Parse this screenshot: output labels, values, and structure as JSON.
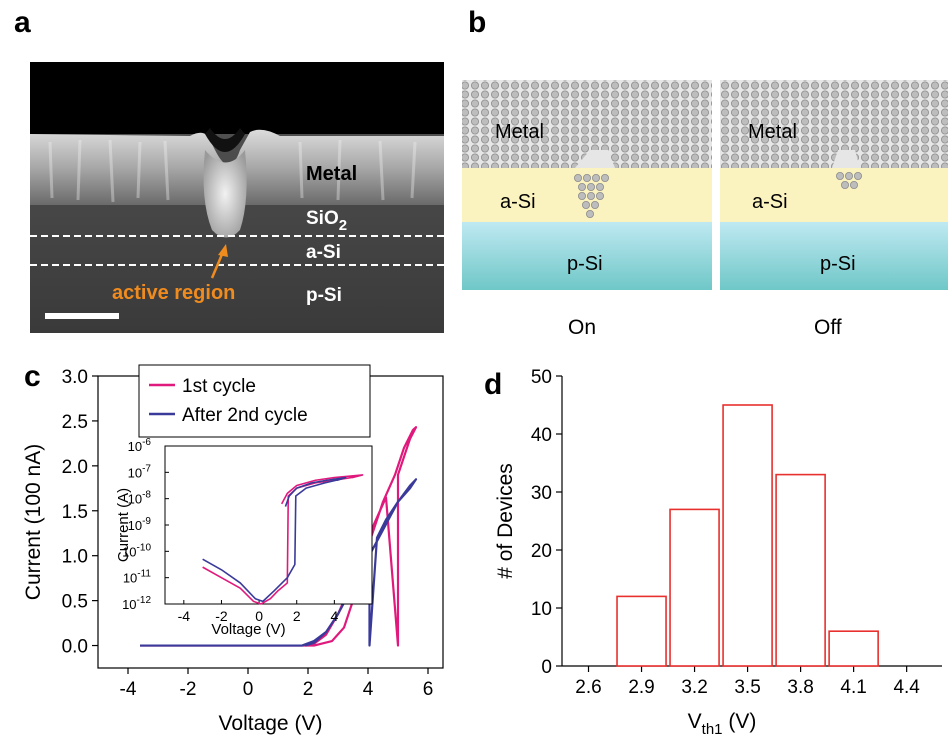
{
  "panels": {
    "a": {
      "letter": "a",
      "labels": {
        "metal": "Metal",
        "sio2_main": "SiO",
        "sio2_sub": "2",
        "a_si": "a-Si",
        "p_si": "p-Si",
        "active_region": "active region"
      },
      "colors": {
        "annotation": "#f08c1e",
        "text": "#ffffff"
      }
    },
    "b": {
      "letter": "b",
      "labels": {
        "metal_on": "Metal",
        "metal_off": "Metal",
        "asi_on": "a-Si",
        "asi_off": "a-Si",
        "psi_on": "p-Si",
        "psi_off": "p-Si",
        "state_on": "On",
        "state_off": "Off"
      },
      "colors": {
        "metal_bg": "#d9d9d9",
        "asi": "#fbf3bf",
        "psi_top": "#bfe9f2",
        "psi_bottom": "#6fc7c7"
      }
    },
    "c": {
      "letter": "c"
    },
    "d": {
      "letter": "d"
    }
  },
  "chart_data": [
    {
      "id": "c-main",
      "type": "line",
      "xlabel": "Voltage (V)",
      "ylabel": "Current (100 nA)",
      "xlim": [
        -5,
        6.5
      ],
      "ylim": [
        -0.25,
        3.0
      ],
      "xticks": [
        "-4",
        "-2",
        "0",
        "2",
        "4",
        "6"
      ],
      "xtick_values": [
        -4,
        -2,
        0,
        2,
        4,
        6
      ],
      "yticks": [
        "0.0",
        "0.5",
        "1.0",
        "1.5",
        "2.0",
        "2.5",
        "3.0"
      ],
      "ytick_values": [
        0,
        0.5,
        1.0,
        1.5,
        2.0,
        2.5,
        3.0
      ],
      "legend_placement": "top-left",
      "series": [
        {
          "name": "1st cycle",
          "color": "#e0197d",
          "x": [
            -3.6,
            2.2,
            2.8,
            3.2,
            3.6,
            4.0,
            4.5,
            4.9,
            5.2,
            5.5,
            5.6,
            5.4,
            5.0,
            5.0,
            4.6,
            4.2,
            3.8,
            3.4,
            3.0,
            2.6,
            2.2,
            1.9
          ],
          "y": [
            0.0,
            0.0,
            0.05,
            0.2,
            0.6,
            1.1,
            1.6,
            1.9,
            2.2,
            2.4,
            2.43,
            2.3,
            1.9,
            0.0,
            1.65,
            1.35,
            1.0,
            0.65,
            0.35,
            0.12,
            0.02,
            0.0
          ]
        },
        {
          "name": "After 2nd cycle",
          "color": "#3a3a9a",
          "x": [
            -3.6,
            1.8,
            2.2,
            2.6,
            3.0,
            3.4,
            3.8,
            4.05,
            4.05,
            4.3,
            4.6,
            5.0,
            5.4,
            5.6,
            5.4,
            5.0,
            4.6,
            4.2,
            3.8,
            3.4,
            3.0,
            2.6,
            2.2,
            1.9
          ],
          "y": [
            0.0,
            0.0,
            0.05,
            0.15,
            0.35,
            0.6,
            0.9,
            1.05,
            0.0,
            1.2,
            1.4,
            1.6,
            1.78,
            1.85,
            1.75,
            1.6,
            1.35,
            1.1,
            0.85,
            0.6,
            0.35,
            0.15,
            0.03,
            0.0
          ]
        }
      ]
    },
    {
      "id": "c-inset",
      "type": "line",
      "xlabel": "Voltage (V)",
      "ylabel": "Current (A)",
      "xlim": [
        -5,
        6
      ],
      "ylim_exp": [
        -12,
        -6
      ],
      "log_y": true,
      "xticks": [
        "-4",
        "-2",
        "0",
        "2",
        "4"
      ],
      "xtick_values": [
        -4,
        -2,
        0,
        2,
        4
      ],
      "ytick_base": "10",
      "ytick_exps": [
        "-12",
        "-11",
        "-10",
        "-9",
        "-8",
        "-7",
        "-6"
      ],
      "ytick_values": [
        -12,
        -11,
        -10,
        -9,
        -8,
        -7,
        -6
      ],
      "series": [
        {
          "name": "1st cycle",
          "color": "#e0197d",
          "x": [
            -3.0,
            -2.0,
            -1.0,
            -0.3,
            0.1,
            0.6,
            1.0,
            1.5,
            1.55,
            2.0,
            3.0,
            4.0,
            4.9,
            4.95,
            5.5,
            4.0,
            3.0,
            2.0,
            1.5,
            1.2
          ],
          "y": [
            -10.6,
            -11.0,
            -11.4,
            -11.9,
            -12.0,
            -11.8,
            -11.5,
            -11.2,
            -7.9,
            -7.6,
            -7.4,
            -7.3,
            -7.2,
            -7.2,
            -7.1,
            -7.2,
            -7.3,
            -7.5,
            -7.8,
            -8.2
          ]
        },
        {
          "name": "After 2nd cycle",
          "color": "#3a3a9a",
          "x": [
            -3.0,
            -2.0,
            -1.0,
            -0.2,
            0.2,
            0.8,
            1.5,
            1.9,
            1.95,
            2.5,
            3.5,
            4.1,
            4.15,
            4.6,
            3.6,
            2.8,
            2.0,
            1.6,
            1.4
          ],
          "y": [
            -10.3,
            -10.7,
            -11.2,
            -11.8,
            -11.9,
            -11.5,
            -11.0,
            -10.5,
            -7.9,
            -7.6,
            -7.4,
            -7.3,
            -7.3,
            -7.2,
            -7.3,
            -7.4,
            -7.6,
            -7.9,
            -8.3
          ]
        }
      ]
    },
    {
      "id": "d-hist",
      "type": "bar",
      "xlabel_main": "V",
      "xlabel_sub": "th1",
      "xlabel_tail": " (V)",
      "ylabel": "# of Devices",
      "xlim": [
        2.45,
        4.6
      ],
      "ylim": [
        0,
        50
      ],
      "xticks": [
        "2.6",
        "2.9",
        "3.2",
        "3.5",
        "3.8",
        "4.1",
        "4.4"
      ],
      "xtick_values": [
        2.6,
        2.9,
        3.2,
        3.5,
        3.8,
        4.1,
        4.4
      ],
      "yticks": [
        "0",
        "10",
        "20",
        "30",
        "40",
        "50"
      ],
      "ytick_values": [
        0,
        10,
        20,
        30,
        40,
        50
      ],
      "bar_color": "#e8302e",
      "bin_width": 0.3,
      "bins": [
        2.9,
        3.2,
        3.5,
        3.8,
        4.1
      ],
      "values": [
        12,
        27,
        45,
        33,
        6
      ]
    }
  ]
}
